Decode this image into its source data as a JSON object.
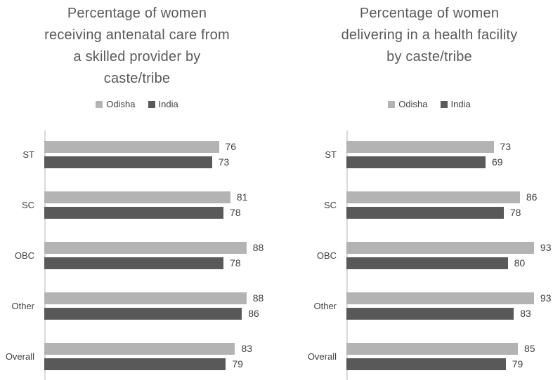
{
  "figure": {
    "background": "#ffffff",
    "text_color_title": "#595959",
    "text_color_labels": "#404040",
    "axis_line_color": "#d9d9d9"
  },
  "chart_data": [
    {
      "type": "bar",
      "orientation": "horizontal",
      "title": "Percentage of women\nreceiving antenatal care from\na skilled provider by\ncaste/tribe",
      "categories": [
        "ST",
        "SC",
        "OBC",
        "Other",
        "Overall"
      ],
      "series": [
        {
          "name": "Odisha",
          "color": "#b3b3b3",
          "values": [
            76,
            81,
            88,
            88,
            83
          ]
        },
        {
          "name": "India",
          "color": "#595959",
          "values": [
            73,
            78,
            78,
            86,
            79
          ]
        }
      ],
      "xlim": [
        0,
        100
      ],
      "data_labels": true,
      "legend_position": "top",
      "grid": false
    },
    {
      "type": "bar",
      "orientation": "horizontal",
      "title": "Percentage of women\ndelivering in a health facility\nby caste/tribe",
      "categories": [
        "ST",
        "SC",
        "OBC",
        "Other",
        "Overall"
      ],
      "series": [
        {
          "name": "Odisha",
          "color": "#b3b3b3",
          "values": [
            73,
            86,
            93,
            93,
            85
          ]
        },
        {
          "name": "India",
          "color": "#595959",
          "values": [
            69,
            78,
            80,
            83,
            79
          ]
        }
      ],
      "xlim": [
        0,
        100
      ],
      "data_labels": true,
      "legend_position": "top",
      "grid": false
    }
  ]
}
